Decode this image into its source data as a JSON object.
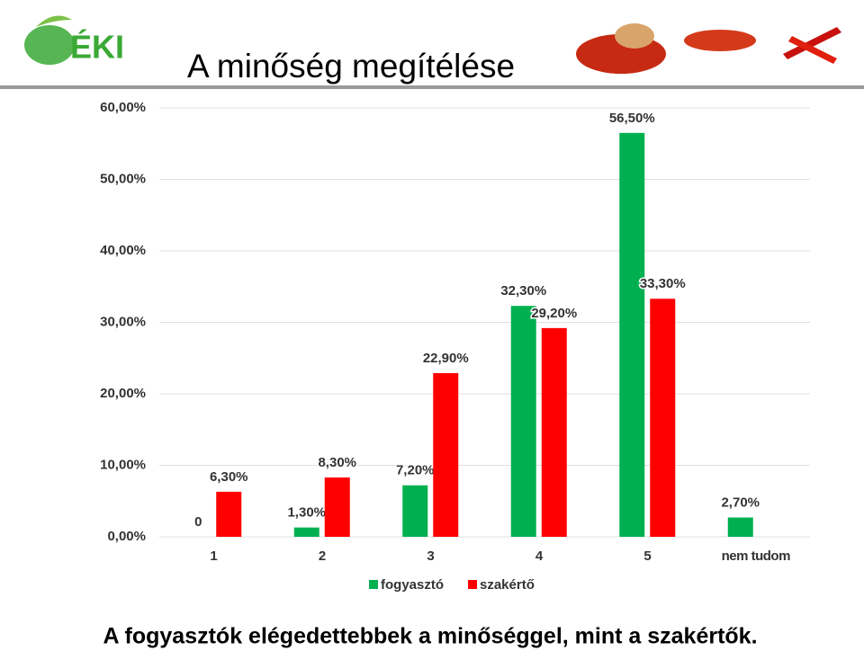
{
  "logo": "ÉKI",
  "chart_data": {
    "type": "bar",
    "title": "A minőség megítélése",
    "categories": [
      "1",
      "2",
      "3",
      "4",
      "5",
      "nem tudom"
    ],
    "series": [
      {
        "name": "fogyasztó",
        "color": "#00b050",
        "values": [
          0,
          1.3,
          7.2,
          32.3,
          56.5,
          2.7
        ],
        "value_labels": [
          "0",
          "1,30%",
          "7,20%",
          "32,30%",
          "56,50%",
          "2,70%"
        ]
      },
      {
        "name": "szakértő",
        "color": "#ff0000",
        "values": [
          6.3,
          8.3,
          22.9,
          29.2,
          33.3,
          null
        ],
        "value_labels": [
          "6,30%",
          "8,30%",
          "22,90%",
          "29,20%",
          "33,30%",
          null
        ]
      }
    ],
    "ylim": [
      0,
      60
    ],
    "yticks": [
      {
        "value": 0,
        "label": "0,00%"
      },
      {
        "value": 10,
        "label": "10,00%"
      },
      {
        "value": 20,
        "label": "20,00%"
      },
      {
        "value": 30,
        "label": "30,00%"
      },
      {
        "value": 40,
        "label": "40,00%"
      },
      {
        "value": 50,
        "label": "50,00%"
      },
      {
        "value": 60,
        "label": "60,00%"
      }
    ],
    "grid": true,
    "legend": "bottom",
    "caption": "A fogyasztók elégedettebbek a minőséggel, mint a szakértők."
  }
}
